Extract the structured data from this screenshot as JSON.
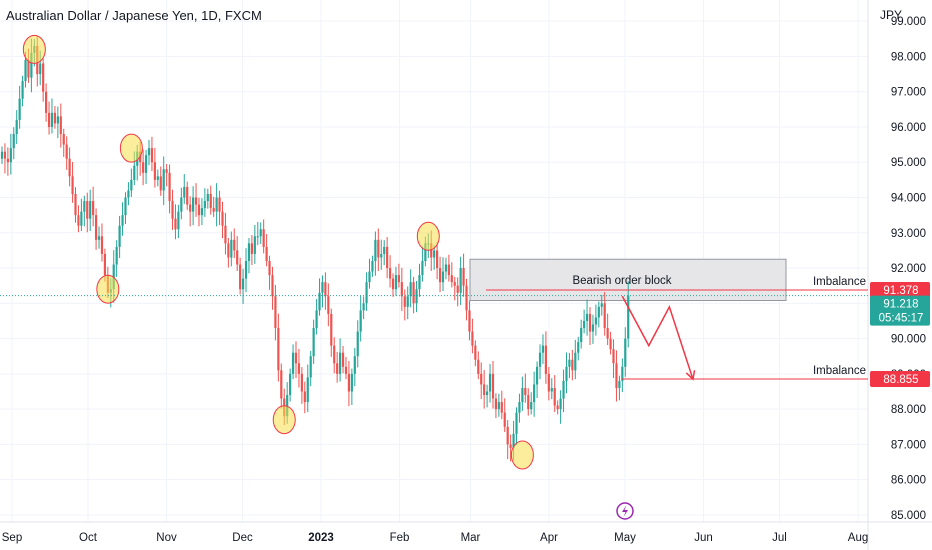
{
  "header": {
    "title": "Australian Dollar / Japanese Yen, 1D, FXCM",
    "currency": "JPY"
  },
  "chart_data": {
    "type": "candlestick",
    "symbol": "AUDJPY",
    "ylim": [
      84.8,
      99.6
    ],
    "y_ticks": [
      "85.000",
      "86.000",
      "87.000",
      "88.000",
      "89.000",
      "90.000",
      "91.000",
      "92.000",
      "93.000",
      "94.000",
      "95.000",
      "96.000",
      "97.000",
      "98.000",
      "99.000"
    ],
    "x_ticks": [
      "Sep",
      "Oct",
      "Nov",
      "Dec",
      "2023",
      "Feb",
      "Mar",
      "Apr",
      "May",
      "Jun",
      "Jul",
      "Aug"
    ],
    "x_tick_dates": [
      "2022-09-01",
      "2022-10-01",
      "2022-11-01",
      "2022-12-01",
      "2023-01-01",
      "2023-02-01",
      "2023-03-01",
      "2023-04-01",
      "2023-05-01",
      "2023-06-01",
      "2023-07-01",
      "2023-08-01"
    ],
    "colors": {
      "up": "#26a69a",
      "down": "#ef5350",
      "annot": "#f23645",
      "highlight": "#f5e04a"
    },
    "closes": [
      95.3,
      95.1,
      95.0,
      95.4,
      95.8,
      96.2,
      96.8,
      97.3,
      97.9,
      97.4,
      98.1,
      98.3,
      97.5,
      97.8,
      97.0,
      96.4,
      96.0,
      96.4,
      96.1,
      96.3,
      95.8,
      95.5,
      95.1,
      94.6,
      94.1,
      93.5,
      93.2,
      93.6,
      93.9,
      93.4,
      93.9,
      93.5,
      92.8,
      92.9,
      92.4,
      91.8,
      91.3,
      91.4,
      92.1,
      92.6,
      93.2,
      93.5,
      94.0,
      94.2,
      94.5,
      94.9,
      95.3,
      95.0,
      94.7,
      95.2,
      95.4,
      95.0,
      94.5,
      94.6,
      94.2,
      94.8,
      94.7,
      93.9,
      93.4,
      93.1,
      93.6,
      94.0,
      94.3,
      93.8,
      93.6,
      94.0,
      93.8,
      93.5,
      93.7,
      93.9,
      94.1,
      93.7,
      93.6,
      94.0,
      93.6,
      93.2,
      92.7,
      92.3,
      92.8,
      92.5,
      92.1,
      91.4,
      91.7,
      92.2,
      92.7,
      92.4,
      92.9,
      92.9,
      93.1,
      92.6,
      92.2,
      91.8,
      91.2,
      90.3,
      89.1,
      88.3,
      87.8,
      88.4,
      89.0,
      89.6,
      89.3,
      89.0,
      88.5,
      88.2,
      88.9,
      89.5,
      90.3,
      90.8,
      91.3,
      91.6,
      91.2,
      90.7,
      89.8,
      89.3,
      89.0,
      89.6,
      89.2,
      89.0,
      88.5,
      89.0,
      89.5,
      90.2,
      90.8,
      91.0,
      91.6,
      91.9,
      92.2,
      92.8,
      92.3,
      92.4,
      92.6,
      92.0,
      91.7,
      91.4,
      91.8,
      91.6,
      91.2,
      90.9,
      91.2,
      91.6,
      91.0,
      91.4,
      91.8,
      92.2,
      92.7,
      92.7,
      92.3,
      92.5,
      92.0,
      91.6,
      91.9,
      92.1,
      91.8,
      91.6,
      91.5,
      91.3,
      92.0,
      91.5,
      90.8,
      90.2,
      89.8,
      89.4,
      89.0,
      88.7,
      88.4,
      88.5,
      89.0,
      88.3,
      88.0,
      88.2,
      87.9,
      87.5,
      87.0,
      86.9,
      87.3,
      87.9,
      88.2,
      88.6,
      88.4,
      88.0,
      88.2,
      88.7,
      89.2,
      89.6,
      89.8,
      89.0,
      88.5,
      88.6,
      88.1,
      88.0,
      88.3,
      88.8,
      89.2,
      89.4,
      89.1,
      89.6,
      89.9,
      90.3,
      90.5,
      90.7,
      90.2,
      90.4,
      90.6,
      90.9,
      91.0,
      90.3,
      90.0,
      89.7,
      89.3,
      88.6,
      88.8,
      89.2,
      90.0,
      91.22
    ],
    "annotations": {
      "order_block_label": "Bearish order block",
      "order_block_range": [
        91.08,
        92.25
      ],
      "imbalance_label_1": "Imbalance",
      "imbalance_level_1": 91.378,
      "imbalance_label_2": "Imbalance",
      "imbalance_level_2": 88.855,
      "current_price": 91.218,
      "countdown": "05:45:17",
      "price_tag_1": "91.378",
      "price_tag_2": "91.218",
      "price_tag_3": "88.855"
    },
    "highlights": [
      {
        "index": 11,
        "level": 98.2
      },
      {
        "index": 44,
        "level": 95.4
      },
      {
        "index": 36,
        "level": 91.4
      },
      {
        "index": 96,
        "level": 87.7
      },
      {
        "index": 145,
        "level": 92.9
      },
      {
        "index": 177,
        "level": 86.7
      }
    ],
    "projection": [
      {
        "index": 211,
        "value": 91.2
      },
      {
        "index": 220,
        "value": 89.8
      },
      {
        "index": 227,
        "value": 90.9
      },
      {
        "index": 235,
        "value": 88.85
      }
    ]
  }
}
